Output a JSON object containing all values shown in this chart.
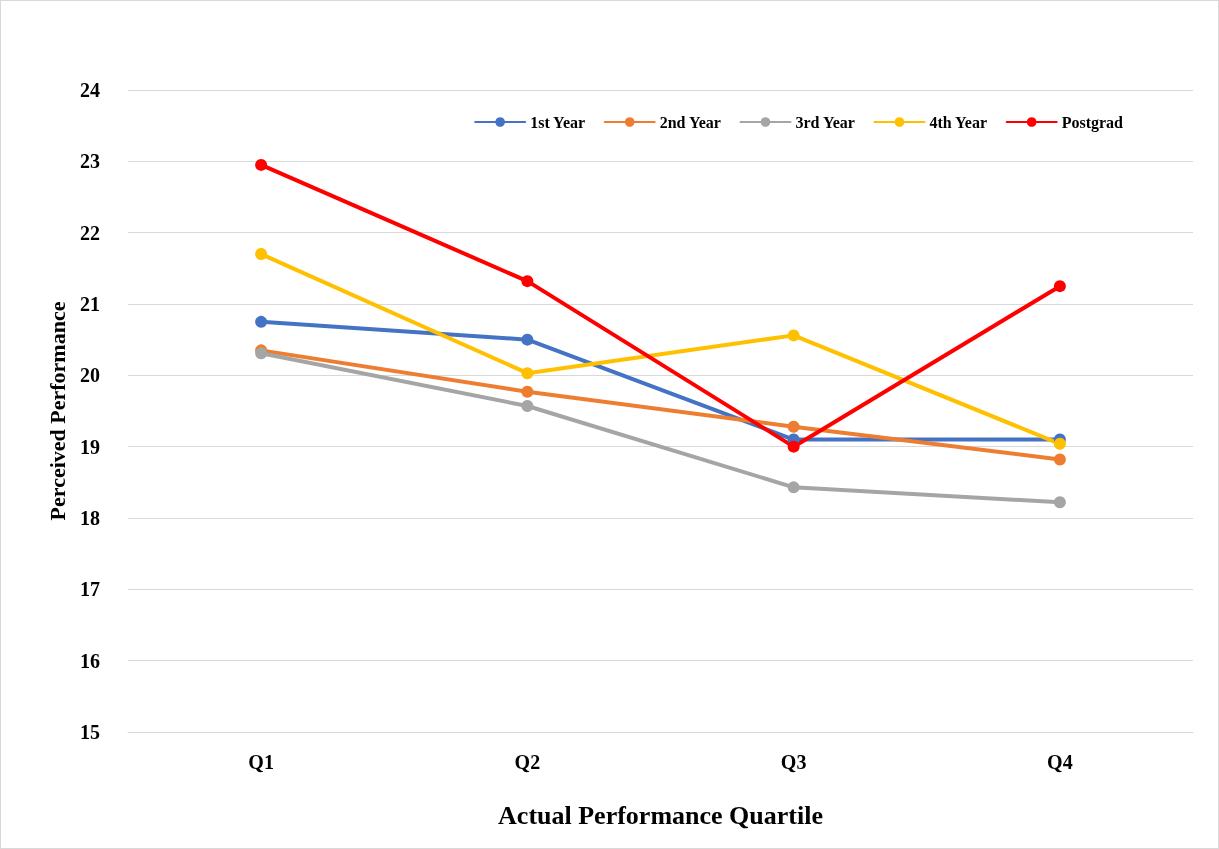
{
  "chart_data": {
    "type": "line",
    "xlabel": "Actual Performance Quartile",
    "ylabel": "Perceived Performance",
    "categories": [
      "Q1",
      "Q2",
      "Q3",
      "Q4"
    ],
    "series": [
      {
        "name": "1st Year",
        "color": "#4472c4",
        "values": [
          20.75,
          20.5,
          19.1,
          19.1
        ]
      },
      {
        "name": "2nd Year",
        "color": "#ed7d31",
        "values": [
          20.35,
          19.77,
          19.28,
          18.82
        ]
      },
      {
        "name": "3rd Year",
        "color": "#a5a5a5",
        "values": [
          20.31,
          19.57,
          18.43,
          18.22
        ]
      },
      {
        "name": "4th Year",
        "color": "#ffc000",
        "values": [
          21.7,
          20.03,
          20.56,
          19.04
        ]
      },
      {
        "name": "Postgrad",
        "color": "#ff0000",
        "values": [
          22.95,
          21.32,
          19.0,
          21.25
        ]
      }
    ],
    "ylim": [
      15,
      24
    ],
    "yticks": [
      15,
      16,
      17,
      18,
      19,
      20,
      21,
      22,
      23,
      24
    ],
    "grid": "y",
    "legend": "top right",
    "marker": "circle",
    "line_style": "solid"
  }
}
